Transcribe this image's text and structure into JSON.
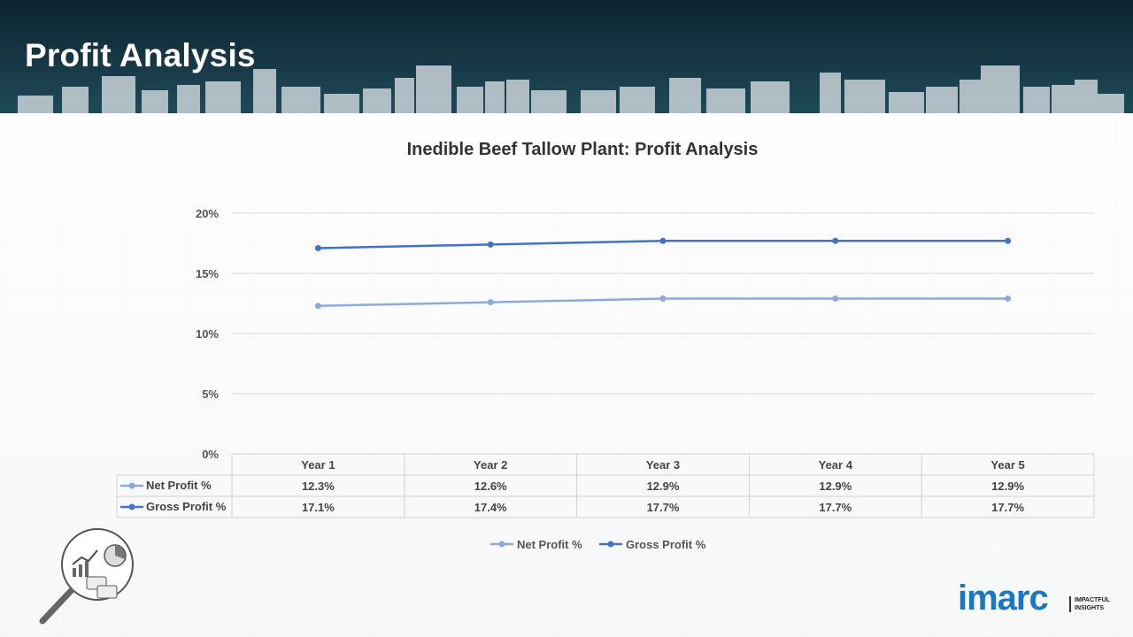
{
  "page": {
    "title": "Profit Analysis"
  },
  "brand": {
    "logo_text": "imarc",
    "tagline_line1": "IMPACTFUL",
    "tagline_line2": "INSIGHTS",
    "accent": "#1a78c2"
  },
  "colors": {
    "net": "#8eaadb",
    "gross": "#4472c4"
  },
  "chart_data": {
    "type": "line",
    "title": "Inedible Beef Tallow Plant: Profit Analysis",
    "categories": [
      "Year 1",
      "Year 2",
      "Year 3",
      "Year 4",
      "Year 5"
    ],
    "y_ticks": [
      "0%",
      "5%",
      "10%",
      "15%",
      "20%"
    ],
    "ylim": [
      0,
      20
    ],
    "grid": true,
    "legend_position": "bottom",
    "series": [
      {
        "name": "Net Profit %",
        "values": [
          12.3,
          12.6,
          12.9,
          12.9,
          12.9
        ],
        "labels": [
          "12.3%",
          "12.6%",
          "12.9%",
          "12.9%",
          "12.9%"
        ]
      },
      {
        "name": "Gross Profit %",
        "values": [
          17.1,
          17.4,
          17.7,
          17.7,
          17.7
        ],
        "labels": [
          "17.1%",
          "17.4%",
          "17.7%",
          "17.7%",
          "17.7%"
        ]
      }
    ]
  }
}
